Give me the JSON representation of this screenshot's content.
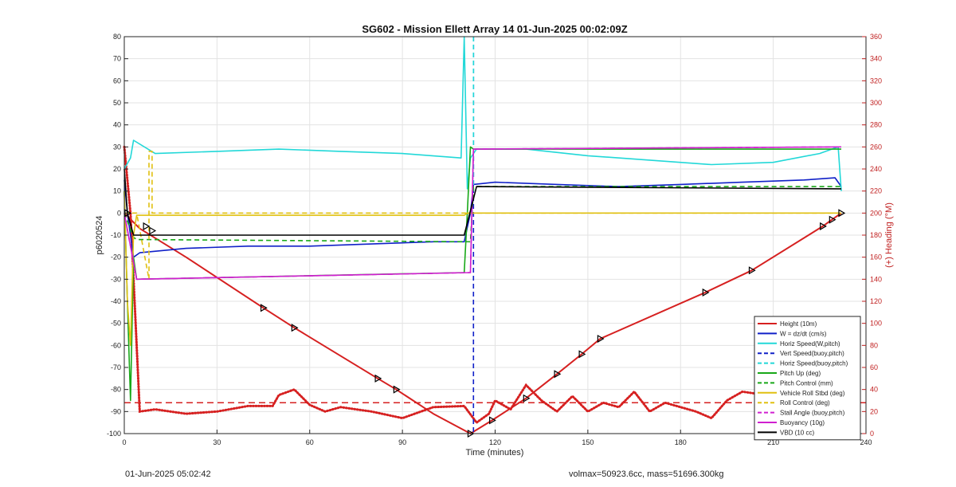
{
  "chart_data": {
    "type": "line",
    "title": "SG602 - Mission Ellett Array 14 01-Jun-2025 00:02:09Z",
    "xlabel": "Time (minutes)",
    "ylabel_left": "p6020524",
    "ylabel_right": "(+) Heading (°M)",
    "xlim": [
      0,
      240
    ],
    "ylim_left": [
      -100,
      80
    ],
    "ylim_right": [
      0,
      360
    ],
    "xticks": [
      0,
      30,
      60,
      90,
      120,
      150,
      180,
      210,
      240
    ],
    "yticks_left": [
      -100,
      -90,
      -80,
      -70,
      -60,
      -50,
      -40,
      -30,
      -20,
      -10,
      0,
      10,
      20,
      30,
      40,
      50,
      60,
      70,
      80
    ],
    "yticks_right": [
      0,
      20,
      40,
      60,
      80,
      100,
      120,
      140,
      160,
      180,
      200,
      220,
      240,
      260,
      280,
      300,
      320,
      340,
      360
    ],
    "grid": true,
    "legend_position": "bottom-right",
    "colors": {
      "height": "#d62020",
      "w": "#1020c8",
      "horiz": "#22d8d8",
      "pitch": "#18a818",
      "roll": "#e0c010",
      "stall": "#d020d0",
      "vbd": "#000000",
      "heading_axis": "#c02020"
    },
    "series": [
      {
        "name": "Height (10m)",
        "key": "height",
        "style": "solid",
        "x": [
          0,
          5,
          20,
          45,
          55,
          82,
          88,
          100,
          112,
          119,
          130,
          140,
          148,
          154,
          188,
          203,
          226,
          229,
          232
        ],
        "y": [
          0,
          -7,
          -20,
          -43,
          -52,
          -75,
          -80,
          -91,
          -100,
          -94,
          -84,
          -73,
          -64,
          -57,
          -36,
          -26,
          -6,
          -3,
          0
        ]
      },
      {
        "name": "W = dz/dt (cm/s)",
        "key": "w",
        "style": "solid",
        "x": [
          0,
          1,
          3,
          5,
          20,
          40,
          60,
          80,
          100,
          110,
          112,
          113,
          120,
          140,
          160,
          180,
          200,
          220,
          230,
          232
        ],
        "y": [
          15,
          0,
          -20,
          -18,
          -16,
          -15,
          -15,
          -14,
          -13,
          -13,
          0,
          13,
          14,
          13,
          12,
          13,
          14,
          15,
          16,
          12
        ]
      },
      {
        "name": "Horiz Speed(W,pitch)",
        "key": "horiz",
        "style": "solid",
        "x": [
          0,
          2,
          3,
          10,
          30,
          50,
          70,
          90,
          109,
          110,
          111,
          112,
          114,
          130,
          150,
          170,
          190,
          210,
          225,
          231,
          232
        ],
        "y": [
          20,
          25,
          33,
          27,
          28,
          29,
          28,
          27,
          25,
          80,
          11,
          25,
          29,
          29,
          26,
          24,
          22,
          23,
          27,
          30,
          10
        ]
      },
      {
        "name": "Vert Speed(buoy,pitch)",
        "key": "w",
        "style": "dashed",
        "x": [
          113,
          113
        ],
        "y": [
          80,
          -100
        ]
      },
      {
        "name": "Horiz Speed(buoy,pitch)",
        "key": "horiz",
        "style": "dashed",
        "x": [
          113,
          113
        ],
        "y": [
          80,
          10
        ]
      },
      {
        "name": "Pitch Up (deg)",
        "key": "pitch",
        "style": "solid",
        "x": [
          0,
          1,
          2,
          3,
          4,
          110,
          111,
          112,
          113,
          232
        ],
        "y": [
          10,
          -40,
          -85,
          -20,
          -30,
          -27,
          0,
          30,
          29,
          29
        ]
      },
      {
        "name": "Pitch Control (mm)",
        "key": "pitch",
        "style": "dashed",
        "x": [
          0,
          3,
          4,
          112,
          113,
          232
        ],
        "y": [
          0,
          -11,
          -12,
          -13,
          12,
          12
        ]
      },
      {
        "name": "Vehicle Roll Stbd (deg)",
        "key": "roll",
        "style": "solid",
        "x": [
          0,
          1,
          2,
          3,
          4,
          110,
          111,
          112,
          113,
          232
        ],
        "y": [
          10,
          -40,
          -60,
          -10,
          -1,
          -1,
          0,
          0,
          0,
          0
        ]
      },
      {
        "name": "Roll Control (deg)",
        "key": "roll",
        "style": "dashed",
        "x": [
          0,
          4,
          8,
          8,
          9,
          9,
          10,
          112,
          113,
          232
        ],
        "y": [
          0,
          0,
          -30,
          28,
          28,
          0,
          0,
          0,
          0,
          0
        ]
      },
      {
        "name": "Stall Angle (buoy,pitch)",
        "key": "stall",
        "style": "dashed",
        "x": [
          0,
          4,
          112,
          113,
          232
        ],
        "y": [
          0,
          -30,
          -27,
          29,
          30
        ]
      },
      {
        "name": "Buoyancy (10g)",
        "key": "stall",
        "style": "solid",
        "x": [
          0,
          4,
          112,
          113,
          232
        ],
        "y": [
          0,
          -30,
          -27,
          29,
          30
        ]
      },
      {
        "name": "VBD (10 cc)",
        "key": "vbd",
        "style": "solid",
        "x": [
          0,
          1,
          3,
          110,
          114,
          232
        ],
        "y": [
          20,
          0,
          -10,
          -10,
          12,
          11
        ]
      }
    ],
    "heading_series": {
      "axis": "right",
      "x": [
        0,
        2,
        5,
        10,
        20,
        30,
        40,
        48,
        50,
        55,
        60,
        65,
        70,
        80,
        90,
        100,
        110,
        114,
        118,
        120,
        125,
        130,
        135,
        140,
        145,
        150,
        155,
        160,
        165,
        170,
        175,
        180,
        185,
        190,
        195,
        200,
        205,
        210,
        215,
        220,
        225,
        230,
        232
      ],
      "y": [
        260,
        200,
        20,
        22,
        18,
        20,
        25,
        25,
        35,
        40,
        26,
        20,
        24,
        20,
        14,
        24,
        25,
        10,
        18,
        30,
        22,
        44,
        30,
        20,
        34,
        20,
        28,
        24,
        38,
        20,
        28,
        24,
        20,
        14,
        30,
        38,
        36,
        32,
        30,
        28,
        30,
        40,
        25
      ],
      "reference_line": 28
    },
    "markers_on_height": [
      [
        1,
        0
      ],
      [
        7,
        -6
      ],
      [
        9,
        -8
      ],
      [
        45,
        -43
      ],
      [
        55,
        -52
      ],
      [
        82,
        -75
      ],
      [
        88,
        -80
      ],
      [
        112,
        -100
      ],
      [
        119,
        -94
      ],
      [
        130,
        -84
      ],
      [
        140,
        -73
      ],
      [
        148,
        -64
      ],
      [
        154,
        -57
      ],
      [
        188,
        -36
      ],
      [
        203,
        -26
      ],
      [
        226,
        -6
      ],
      [
        229,
        -3
      ],
      [
        232,
        0
      ]
    ]
  },
  "footer": {
    "left": "01-Jun-2025 05:02:42",
    "right": "volmax=50923.6cc, mass=51696.300kg"
  }
}
